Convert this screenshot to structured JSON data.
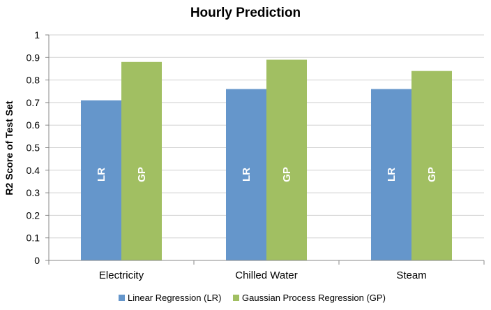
{
  "chart_data": {
    "type": "bar",
    "title": "Hourly Prediction",
    "xlabel": "",
    "ylabel": "R2 Score of Test Set",
    "ylim": [
      0,
      1
    ],
    "yticks": [
      "0",
      "0.1",
      "0.2",
      "0.3",
      "0.4",
      "0.5",
      "0.6",
      "0.7",
      "0.8",
      "0.9",
      "1"
    ],
    "categories": [
      "Electricity",
      "Chilled Water",
      "Steam"
    ],
    "series": [
      {
        "name": "Linear Regression (LR)",
        "bar_label": "LR",
        "color": "#6596cb",
        "values": [
          0.71,
          0.76,
          0.76
        ]
      },
      {
        "name": "Gaussian Process Regression (GP)",
        "bar_label": "GP",
        "color": "#a1bf62",
        "values": [
          0.88,
          0.89,
          0.84
        ]
      }
    ],
    "grid": true,
    "legend_position": "bottom"
  }
}
